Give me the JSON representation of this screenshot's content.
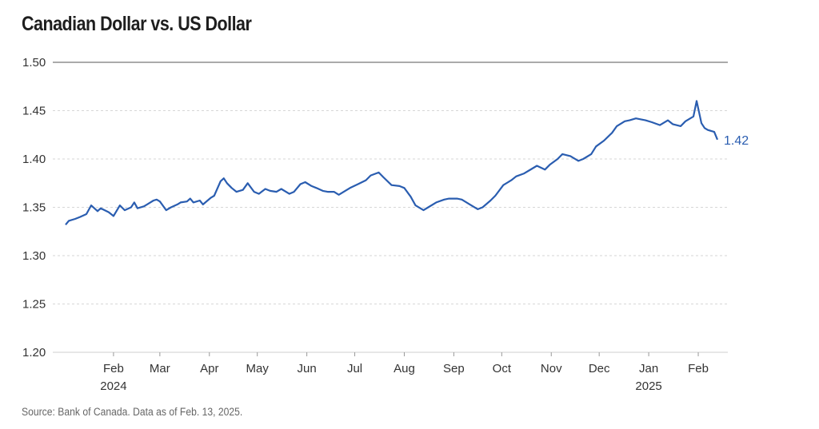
{
  "chart_data": {
    "type": "line",
    "title": "Canadian Dollar vs. US Dollar",
    "source": "Source: Bank of Canada. Data as of Feb. 13, 2025.",
    "ylim": [
      1.2,
      1.5
    ],
    "y_ticks": [
      "1.50",
      "1.45",
      "1.40",
      "1.35",
      "1.30",
      "1.25",
      "1.20"
    ],
    "x_ticks": [
      {
        "label": "Feb",
        "year": "2024",
        "date": "2024-02-01"
      },
      {
        "label": "Mar",
        "year": "",
        "date": "2024-03-01"
      },
      {
        "label": "Apr",
        "year": "",
        "date": "2024-04-01"
      },
      {
        "label": "May",
        "year": "",
        "date": "2024-05-01"
      },
      {
        "label": "Jun",
        "year": "",
        "date": "2024-06-01"
      },
      {
        "label": "Jul",
        "year": "",
        "date": "2024-07-01"
      },
      {
        "label": "Aug",
        "year": "",
        "date": "2024-08-01"
      },
      {
        "label": "Sep",
        "year": "",
        "date": "2024-09-01"
      },
      {
        "label": "Oct",
        "year": "",
        "date": "2024-10-01"
      },
      {
        "label": "Nov",
        "year": "",
        "date": "2024-11-01"
      },
      {
        "label": "Dec",
        "year": "",
        "date": "2024-12-01"
      },
      {
        "label": "Jan",
        "year": "2025",
        "date": "2025-01-01"
      },
      {
        "label": "Feb",
        "year": "",
        "date": "2025-02-01"
      }
    ],
    "x_range": [
      "2024-01-02",
      "2025-02-13"
    ],
    "end_label": "1.42",
    "line_color": "#2a5db0",
    "grid": true,
    "series": [
      {
        "x": [
          "2024-01-02",
          "2024-01-04",
          "2024-01-08",
          "2024-01-11",
          "2024-01-15",
          "2024-01-18",
          "2024-01-22",
          "2024-01-24",
          "2024-01-29",
          "2024-02-01",
          "2024-02-05",
          "2024-02-08",
          "2024-02-12",
          "2024-02-14",
          "2024-02-16",
          "2024-02-20",
          "2024-02-22",
          "2024-02-26",
          "2024-02-28",
          "2024-03-01",
          "2024-03-05",
          "2024-03-08",
          "2024-03-12",
          "2024-03-14",
          "2024-03-18",
          "2024-03-20",
          "2024-03-22",
          "2024-03-26",
          "2024-03-28",
          "2024-04-02",
          "2024-04-04",
          "2024-04-08",
          "2024-04-10",
          "2024-04-12",
          "2024-04-15",
          "2024-04-18",
          "2024-04-22",
          "2024-04-25",
          "2024-04-29",
          "2024-05-02",
          "2024-05-06",
          "2024-05-09",
          "2024-05-13",
          "2024-05-16",
          "2024-05-21",
          "2024-05-24",
          "2024-05-28",
          "2024-05-31",
          "2024-06-04",
          "2024-06-07",
          "2024-06-11",
          "2024-06-14",
          "2024-06-18",
          "2024-06-21",
          "2024-06-25",
          "2024-06-28",
          "2024-07-03",
          "2024-07-08",
          "2024-07-11",
          "2024-07-16",
          "2024-07-19",
          "2024-07-24",
          "2024-07-29",
          "2024-08-01",
          "2024-08-05",
          "2024-08-08",
          "2024-08-13",
          "2024-08-16",
          "2024-08-21",
          "2024-08-26",
          "2024-08-29",
          "2024-09-03",
          "2024-09-06",
          "2024-09-11",
          "2024-09-16",
          "2024-09-19",
          "2024-09-24",
          "2024-09-27",
          "2024-10-02",
          "2024-10-07",
          "2024-10-10",
          "2024-10-15",
          "2024-10-18",
          "2024-10-23",
          "2024-10-28",
          "2024-10-31",
          "2024-11-05",
          "2024-11-08",
          "2024-11-13",
          "2024-11-18",
          "2024-11-21",
          "2024-11-26",
          "2024-11-29",
          "2024-12-04",
          "2024-12-09",
          "2024-12-12",
          "2024-12-17",
          "2024-12-20",
          "2024-12-24",
          "2024-12-30",
          "2025-01-03",
          "2025-01-08",
          "2025-01-13",
          "2025-01-16",
          "2025-01-21",
          "2025-01-24",
          "2025-01-29",
          "2025-01-31",
          "2025-02-03",
          "2025-02-05",
          "2025-02-07",
          "2025-02-11",
          "2025-02-13"
        ],
        "y": [
          1.332,
          1.336,
          1.338,
          1.34,
          1.343,
          1.352,
          1.346,
          1.349,
          1.345,
          1.341,
          1.352,
          1.347,
          1.35,
          1.355,
          1.349,
          1.351,
          1.353,
          1.357,
          1.358,
          1.356,
          1.347,
          1.35,
          1.353,
          1.355,
          1.356,
          1.359,
          1.355,
          1.357,
          1.353,
          1.36,
          1.362,
          1.377,
          1.38,
          1.375,
          1.37,
          1.366,
          1.368,
          1.375,
          1.366,
          1.364,
          1.369,
          1.367,
          1.366,
          1.369,
          1.364,
          1.366,
          1.374,
          1.376,
          1.372,
          1.37,
          1.367,
          1.366,
          1.366,
          1.363,
          1.367,
          1.37,
          1.374,
          1.378,
          1.383,
          1.386,
          1.381,
          1.373,
          1.372,
          1.37,
          1.361,
          1.352,
          1.347,
          1.35,
          1.355,
          1.358,
          1.359,
          1.359,
          1.358,
          1.353,
          1.348,
          1.35,
          1.357,
          1.362,
          1.373,
          1.378,
          1.382,
          1.385,
          1.388,
          1.393,
          1.389,
          1.394,
          1.4,
          1.405,
          1.403,
          1.398,
          1.4,
          1.405,
          1.413,
          1.419,
          1.427,
          1.434,
          1.439,
          1.44,
          1.442,
          1.44,
          1.438,
          1.435,
          1.44,
          1.436,
          1.434,
          1.439,
          1.444,
          1.46,
          1.437,
          1.432,
          1.43,
          1.428,
          1.42
        ]
      }
    ]
  }
}
